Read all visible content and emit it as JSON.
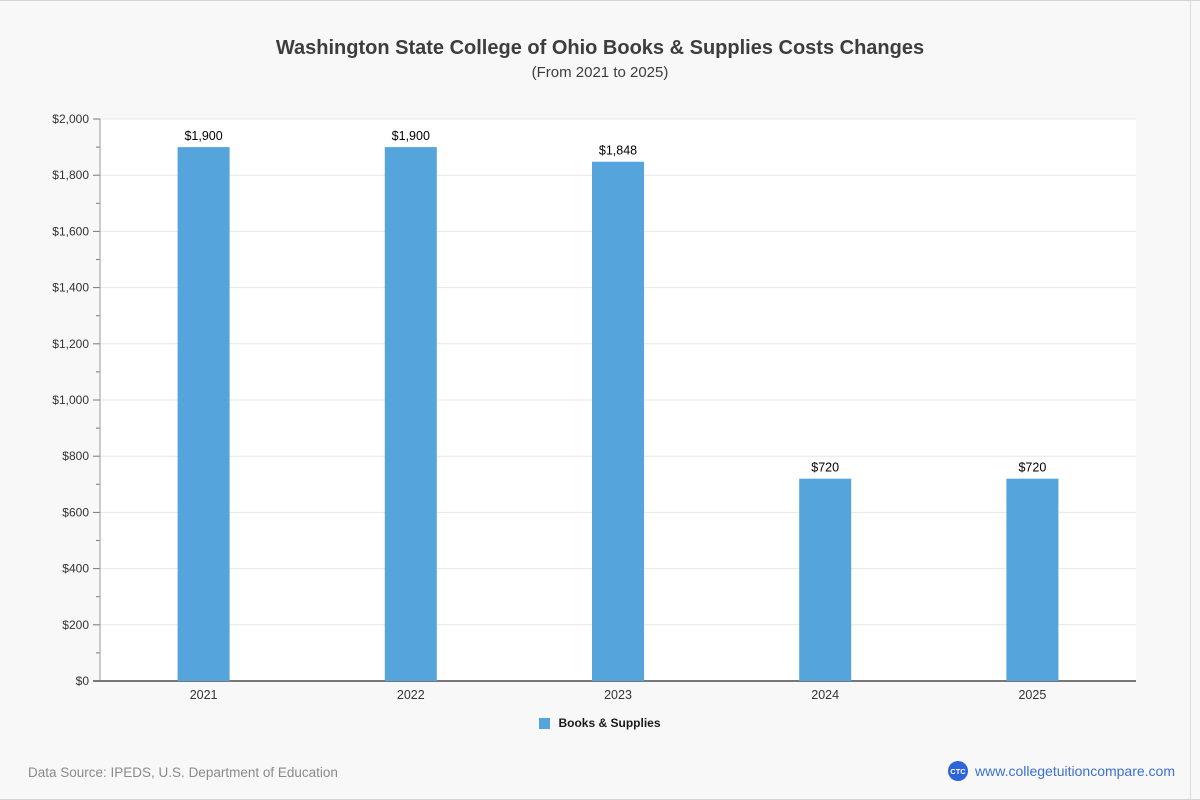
{
  "footer": {
    "data_source": "Data Source: IPEDS, U.S. Department of Education",
    "logo_text": "CTC",
    "logo_color": "#2e64d9",
    "website": "www.collegetuitioncompare.com",
    "link_color": "#3b6fd3"
  },
  "chart_data": {
    "type": "bar",
    "title": "Washington State College of Ohio Books & Supplies Costs Changes",
    "subtitle": "(From 2021 to 2025)",
    "categories": [
      "2021",
      "2022",
      "2023",
      "2024",
      "2025"
    ],
    "series": [
      {
        "name": "Books & Supplies",
        "values": [
          1900,
          1900,
          1848,
          720,
          720
        ]
      }
    ],
    "value_labels": [
      "$1,900",
      "$1,900",
      "$1,848",
      "$720",
      "$720"
    ],
    "xlabel": "",
    "ylabel": "",
    "ylim": [
      0,
      2000
    ],
    "ytick_step": 200,
    "minor_tick_step": 100,
    "ytick_labels": [
      "$0",
      "$200",
      "$400",
      "$600",
      "$800",
      "$1,000",
      "$1,200",
      "$1,400",
      "$1,600",
      "$1,800",
      "$2,000"
    ],
    "grid": true,
    "legend_position": "bottom",
    "bar_color": "#56a4dc",
    "plot_background": "#ffffff",
    "grid_color": "#e7e7e7",
    "axis_color": "#787878",
    "tick_label_color": "#333333",
    "value_label_color": "#000000"
  }
}
